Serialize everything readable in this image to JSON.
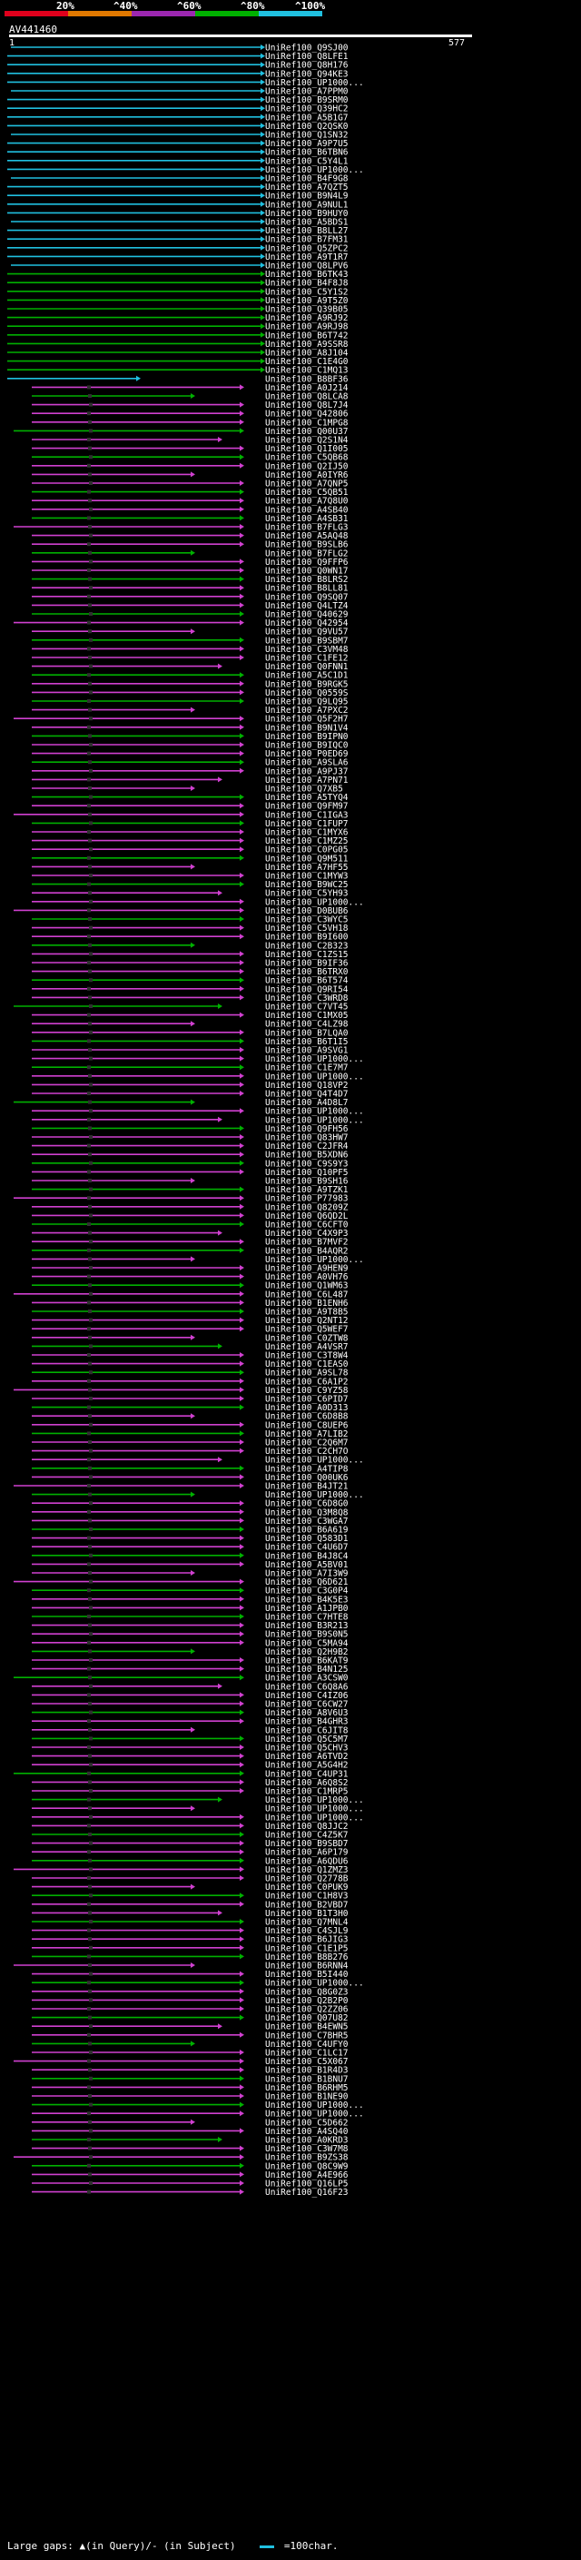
{
  "legend": {
    "ticks": [
      "20%",
      "^40%",
      "^60%",
      "^80%",
      "^100%"
    ],
    "colors": [
      "#e0001c",
      "#e07800",
      "#9c27b0",
      "#00b000",
      "#20c0e0"
    ]
  },
  "query": {
    "label": "AV441460",
    "start": "1",
    "end": "577"
  },
  "hits": [
    "UniRef100_Q9SJ00",
    "UniRef100_Q8LFE1",
    "UniRef100_Q8H176",
    "UniRef100_Q94KE3",
    "UniRef100_UP1000...",
    "UniRef100_A7PPM0",
    "UniRef100_B9SRM0",
    "UniRef100_Q39HC2",
    "UniRef100_A5B1G7",
    "UniRef100_Q2QSK0",
    "UniRef100_Q1SN32",
    "UniRef100_A9P7U5",
    "UniRef100_B6TBN6",
    "UniRef100_C5Y4L1",
    "UniRef100_UP1000...",
    "UniRef100_B4F9G8",
    "UniRef100_A7QZT5",
    "UniRef100_B9N4L9",
    "UniRef100_A9NUL1",
    "UniRef100_B9HUY0",
    "UniRef100_A5BDS1",
    "UniRef100_B8LL27",
    "UniRef100_B7FM31",
    "UniRef100_Q5ZPC2",
    "UniRef100_A9T1R7",
    "UniRef100_Q8LPV6",
    "UniRef100_B6TK43",
    "UniRef100_B4F8J8",
    "UniRef100_C5Y1S2",
    "UniRef100_A9T5Z0",
    "UniRef100_Q39B05",
    "UniRef100_A9RJ92",
    "UniRef100_A9RJ98",
    "UniRef100_B6T742",
    "UniRef100_A9SSR8",
    "UniRef100_A8J104",
    "UniRef100_C1E4G0",
    "UniRef100_C1MQ13",
    "UniRef100_B8BF36",
    "UniRef100_A0J214",
    "UniRef100_Q8LCA8",
    "UniRef100_Q8L7J4",
    "UniRef100_Q42806",
    "UniRef100_C1MPG8",
    "UniRef100_Q00U37",
    "UniRef100_Q2S1N4",
    "UniRef100_Q1I005",
    "UniRef100_C5QB68",
    "UniRef100_Q2IJ50",
    "UniRef100_A0IYR6",
    "UniRef100_A7QNP5",
    "UniRef100_C5QB51",
    "UniRef100_A7Q8U0",
    "UniRef100_A4SB40",
    "UniRef100_A4SB31",
    "UniRef100_B7FLG3",
    "UniRef100_A5AQ48",
    "UniRef100_B9SLB6",
    "UniRef100_B7FLG2",
    "UniRef100_Q9FFP6",
    "UniRef100_Q0WN17",
    "UniRef100_B8LRS2",
    "UniRef100_B8LL81",
    "UniRef100_Q9SQ07",
    "UniRef100_Q4LTZ4",
    "UniRef100_Q40629",
    "UniRef100_Q42954",
    "UniRef100_Q9VU57",
    "UniRef100_B9SBM7",
    "UniRef100_C3VM48",
    "UniRef100_C1FE12",
    "UniRef100_Q0FNN1",
    "UniRef100_A5C1D1",
    "UniRef100_B9RGK5",
    "UniRef100_Q0559S",
    "UniRef100_Q9LQ95",
    "UniRef100_A7PXC2",
    "UniRef100_Q5F2H7",
    "UniRef100_B9N1V4",
    "UniRef100_B9IPN0",
    "UniRef100_B9IQC0",
    "UniRef100_P0ED69",
    "UniRef100_A9SLA6",
    "UniRef100_A9PJ37",
    "UniRef100_A7PN71",
    "UniRef100_Q7XB5",
    "UniRef100_A5TYQ4",
    "UniRef100_Q9FM97",
    "UniRef100_C1IGA3",
    "UniRef100_C1FUP7",
    "UniRef100_C1MYX6",
    "UniRef100_C1MZ25",
    "UniRef100_C0PG05",
    "UniRef100_Q9M511",
    "UniRef100_A7HF55",
    "UniRef100_C1MYW3",
    "UniRef100_B9WC25",
    "UniRef100_C5YH93",
    "UniRef100_UP1000...",
    "UniRef100_D0BUB6",
    "UniRef100_C3WYC5",
    "UniRef100_C5VH18",
    "UniRef100_B9I600",
    "UniRef100_C2B323",
    "UniRef100_C1ZS15",
    "UniRef100_B9IF36",
    "UniRef100_B6TRX0",
    "UniRef100_B6T574",
    "UniRef100_Q9RI54",
    "UniRef100_C3WRD8",
    "UniRef100_C7VT45",
    "UniRef100_C1MX05",
    "UniRef100_C4LZ98",
    "UniRef100_B7LQA0",
    "UniRef100_B6T1I5",
    "UniRef100_A9SVG1",
    "UniRef100_UP1000...",
    "UniRef100_C1E7M7",
    "UniRef100_UP1000...",
    "UniRef100_Q18VP2",
    "UniRef100_Q4T4D7",
    "UniRef100_A4D8L7",
    "UniRef100_UP1000...",
    "UniRef100_UP1000...",
    "UniRef100_Q9FH56",
    "UniRef100_Q83HW7",
    "UniRef100_C2JFR4",
    "UniRef100_B5XDN6",
    "UniRef100_C9S9Y3",
    "UniRef100_Q10PF5",
    "UniRef100_B9SH16",
    "UniRef100_A9TZK1",
    "UniRef100_P77983",
    "UniRef100_Q8209Z",
    "UniRef100_Q6QD2L",
    "UniRef100_C6CFT0",
    "UniRef100_C4X9P3",
    "UniRef100_B7MVF2",
    "UniRef100_B4AQR2",
    "UniRef100_UP1000...",
    "UniRef100_A9HEN9",
    "UniRef100_A0VH76",
    "UniRef100_Q1WM63",
    "UniRef100_C6L487",
    "UniRef100_B1ENH6",
    "UniRef100_A9T8B5",
    "UniRef100_Q2NT12",
    "UniRef100_Q5WEF7",
    "UniRef100_C0ZTW8",
    "UniRef100_A4VSR7",
    "UniRef100_C3T8W4",
    "UniRef100_C1EAS0",
    "UniRef100_A9SL78",
    "UniRef100_C6A1P2",
    "UniRef100_C9YZ58",
    "UniRef100_C6PID7",
    "UniRef100_A0D313",
    "UniRef100_C6D8B8",
    "UniRef100_C8UEP6",
    "UniRef100_A7LIB2",
    "UniRef100_C2Q6M7",
    "UniRef100_C2CH7O",
    "UniRef100_UP1000...",
    "UniRef100_A4TIP8",
    "UniRef100_Q00UK6",
    "UniRef100_B4JT21",
    "UniRef100_UP1000...",
    "UniRef100_C6D8G0",
    "UniRef100_Q3M8Q8",
    "UniRef100_C3WGA7",
    "UniRef100_B6A619",
    "UniRef100_Q583D1",
    "UniRef100_C4U6D7",
    "UniRef100_B4J8C4",
    "UniRef100_A5BV01",
    "UniRef100_A7I3W9",
    "UniRef100_Q6D621",
    "UniRef100_C3G0P4",
    "UniRef100_B4K5E3",
    "UniRef100_A1JPB0",
    "UniRef100_C7HTE8",
    "UniRef100_B3R213",
    "UniRef100_B9S0N5",
    "UniRef100_C5MA94",
    "UniRef100_Q2H9B2",
    "UniRef100_B6KAT9",
    "UniRef100_B4N125",
    "UniRef100_A3CSW0",
    "UniRef100_C6Q8A6",
    "UniRef100_C4IZ06",
    "UniRef100_C6CW27",
    "UniRef100_A8V6U3",
    "UniRef100_B4GHR3",
    "UniRef100_C6JIT8",
    "UniRef100_Q5C5M7",
    "UniRef100_Q5CHV3",
    "UniRef100_A6TVD2",
    "UniRef100_A5G4H2",
    "UniRef100_C4UP31",
    "UniRef100_A6Q8S2",
    "UniRef100_C1MRP5",
    "UniRef100_UP1000...",
    "UniRef100_UP1000...",
    "UniRef100_UP1000...",
    "UniRef100_Q8JJC2",
    "UniRef100_C4Z5K7",
    "UniRef100_B9SBD7",
    "UniRef100_A6P179",
    "UniRef100_A6QDU6",
    "UniRef100_Q1ZMZ3",
    "UniRef100_Q2778B",
    "UniRef100_C0PUK9",
    "UniRef100_C1H8V3",
    "UniRef100_B2VBD7",
    "UniRef100_B1T3H0",
    "UniRef100_Q7MNL4",
    "UniRef100_C4SJL9",
    "UniRef100_B6JIG3",
    "UniRef100_C1E1P5",
    "UniRef100_B8B276",
    "UniRef100_B6RNN4",
    "UniRef100_B5I440",
    "UniRef100_UP1000...",
    "UniRef100_Q8G0Z3",
    "UniRef100_Q2B2P0",
    "UniRef100_Q2ZZ06",
    "UniRef100_Q07U82",
    "UniRef100_B4EWN5",
    "UniRef100_C7BHR5",
    "UniRef100_C4UFY0",
    "UniRef100_C1LC17",
    "UniRef100_C5X067",
    "UniRef100_B1R4D3",
    "UniRef100_B1BNU7",
    "UniRef100_B6RHM5",
    "UniRef100_B1NE90",
    "UniRef100_UP1000...",
    "UniRef100_UP1000...",
    "UniRef100_C5D662",
    "UniRef100_A4SQ40",
    "UniRef100_A0KRD3",
    "UniRef100_C3W7M8",
    "UniRef100_B9ZS38",
    "UniRef100_Q8C9W9",
    "UniRef100_A4E966",
    "UniRef100_Q16LP5",
    "UniRef100_Q16F23"
  ]
}
